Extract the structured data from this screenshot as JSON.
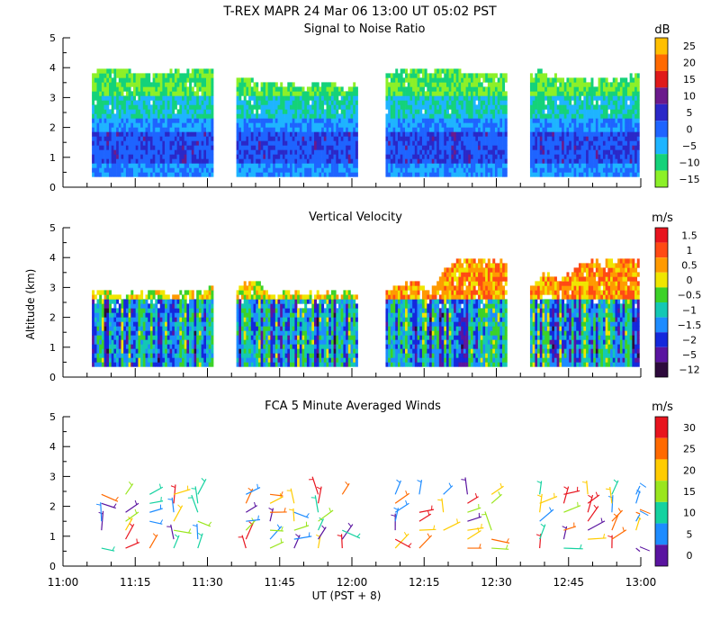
{
  "figure": {
    "title": "T-REX   MAPR 24 Mar 06   13:00 UT   05:02   PST",
    "xlabel": "UT  (PST + 8)",
    "ylabel": "Altitude (km)",
    "xticks": [
      "11:00",
      "11:15",
      "11:30",
      "11:45",
      "12:00",
      "12:15",
      "12:30",
      "12:45",
      "13:00"
    ]
  },
  "chart_data": [
    {
      "type": "heatmap",
      "title": "Signal to Noise Ratio",
      "unit": "dB",
      "ylim": [
        0,
        5
      ],
      "yticks": [
        0,
        1,
        2,
        3,
        4,
        5
      ],
      "xlim_minutes": [
        0,
        120
      ],
      "data_segments_minutes": [
        [
          6,
          31
        ],
        [
          36,
          61
        ],
        [
          67,
          92
        ],
        [
          97,
          122
        ]
      ],
      "scale": [
        {
          "label": "25",
          "color": "#ffbf00"
        },
        {
          "label": "20",
          "color": "#ff6a00"
        },
        {
          "label": "15",
          "color": "#e01a1a"
        },
        {
          "label": "10",
          "color": "#6b1a8c"
        },
        {
          "label": "5",
          "color": "#2a28c8"
        },
        {
          "label": "0",
          "color": "#1e64ff"
        },
        {
          "label": "−5",
          "color": "#1eb4ff"
        },
        {
          "label": "−10",
          "color": "#14d27a"
        },
        {
          "label": "−15",
          "color": "#8cf028"
        }
      ]
    },
    {
      "type": "heatmap",
      "title": "Vertical Velocity",
      "unit": "m/s",
      "ylim": [
        0,
        5
      ],
      "yticks": [
        0,
        1,
        2,
        3,
        4,
        5
      ],
      "xlim_minutes": [
        0,
        120
      ],
      "data_segments_minutes": [
        [
          6,
          31
        ],
        [
          36,
          61
        ],
        [
          67,
          92
        ],
        [
          97,
          122
        ]
      ],
      "scale": [
        {
          "label": "1.5",
          "color": "#e8141e"
        },
        {
          "label": "1",
          "color": "#ff4a14"
        },
        {
          "label": "0.5",
          "color": "#ff9a00"
        },
        {
          "label": "0",
          "color": "#f0e600"
        },
        {
          "label": "−0.5",
          "color": "#3cd228"
        },
        {
          "label": "−1",
          "color": "#14c8b4"
        },
        {
          "label": "−1.5",
          "color": "#1e8cff"
        },
        {
          "label": "−2",
          "color": "#1428dc"
        },
        {
          "label": "−5",
          "color": "#5a14a0"
        },
        {
          "label": "−12",
          "color": "#2d0a3c"
        }
      ]
    },
    {
      "type": "scatter",
      "title": "FCA 5 Minute Averaged Winds",
      "unit": "m/s",
      "ylim": [
        0,
        5
      ],
      "yticks": [
        0,
        1,
        2,
        3,
        4,
        5
      ],
      "xlim_minutes": [
        0,
        120
      ],
      "data_segments_minutes": [
        [
          6,
          31
        ],
        [
          36,
          61
        ],
        [
          67,
          92
        ],
        [
          97,
          122
        ]
      ],
      "scale": [
        {
          "label": "30",
          "color": "#e8141e"
        },
        {
          "label": "25",
          "color": "#ff6a00"
        },
        {
          "label": "20",
          "color": "#ffcc00"
        },
        {
          "label": "15",
          "color": "#9ae61e"
        },
        {
          "label": "10",
          "color": "#14d2a0"
        },
        {
          "label": "5",
          "color": "#1e8cff"
        },
        {
          "label": "0",
          "color": "#5a14a0"
        }
      ]
    }
  ]
}
